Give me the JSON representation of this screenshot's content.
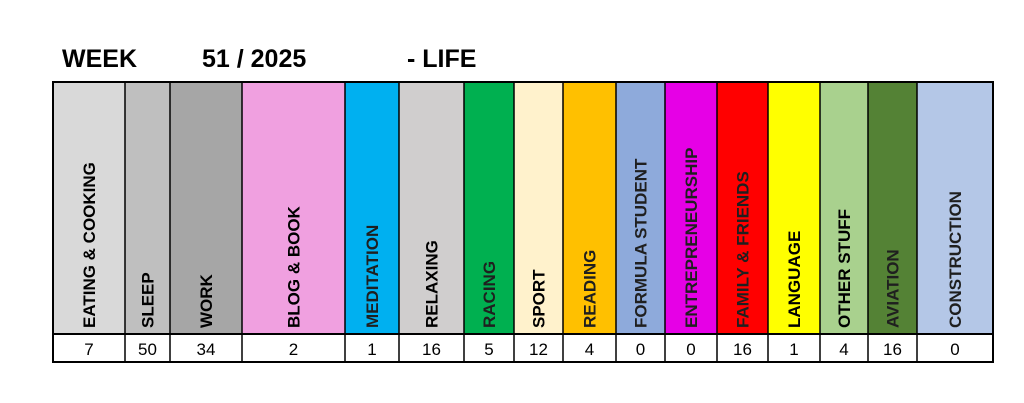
{
  "header": {
    "week_label": "WEEK",
    "week_number": "51 / 2025",
    "section": "- LIFE"
  },
  "chart_data": {
    "type": "table",
    "title": "WEEK 51 / 2025 - LIFE",
    "categories": [
      "EATING & COOKING",
      "SLEEP",
      "WORK",
      "BLOG & BOOK",
      "MEDITATION",
      "RELAXING",
      "RACING",
      "SPORT",
      "READING",
      "FORMULA STUDENT",
      "ENTREPRENEURSHIP",
      "FAMILY & FRIENDS",
      "LANGUAGE",
      "OTHER STUFF",
      "AVIATION",
      "CONSTRUCTION"
    ],
    "values": [
      7,
      50,
      34,
      2,
      1,
      16,
      5,
      12,
      4,
      0,
      0,
      16,
      1,
      4,
      16,
      0
    ],
    "colors": [
      "#d9d9d9",
      "#bfbfbf",
      "#a6a6a6",
      "#f0a0e0",
      "#00b0f0",
      "#d0cece",
      "#00b050",
      "#fff2cc",
      "#ffc000",
      "#8eaadb",
      "#e600e6",
      "#ff0000",
      "#ffff00",
      "#a9d18e",
      "#548235",
      "#b4c7e7"
    ]
  }
}
